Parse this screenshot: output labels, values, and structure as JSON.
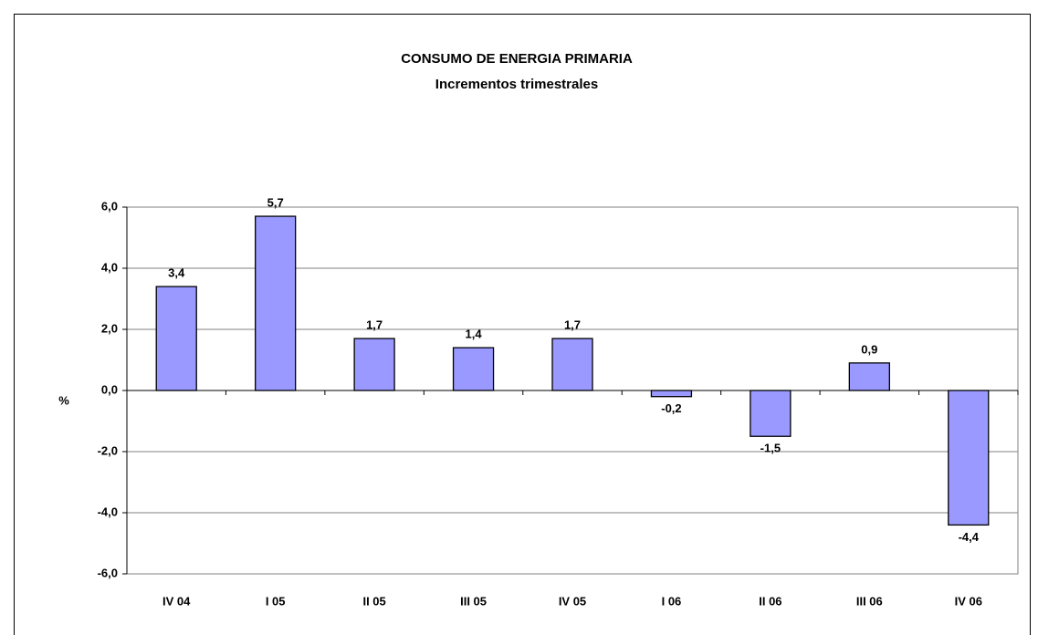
{
  "chart_data": {
    "type": "bar",
    "title": "CONSUMO DE ENERGIA PRIMARIA",
    "subtitle": "Incrementos trimestrales",
    "y_label": "%",
    "categories": [
      "IV 04",
      "I 05",
      "II 05",
      "III 05",
      "IV 05",
      "I 06",
      "II 06",
      "III 06",
      "IV 06"
    ],
    "values": [
      3.4,
      5.7,
      1.7,
      1.4,
      1.7,
      -0.2,
      -1.5,
      0.9,
      -4.4
    ],
    "value_labels": [
      "3,4",
      "5,7",
      "1,7",
      "1,4",
      "1,7",
      "-0,2",
      "-1,5",
      "0,9",
      "-4,4"
    ],
    "color": "#9999ff",
    "ylim": [
      -6,
      6
    ],
    "yticks": [
      {
        "value": -6,
        "label": "-6,0"
      },
      {
        "value": -4,
        "label": "-4,0"
      },
      {
        "value": -2,
        "label": "-2,0"
      },
      {
        "value": 0,
        "label": "0,0"
      },
      {
        "value": 2,
        "label": "2,0"
      },
      {
        "value": 4,
        "label": "4,0"
      },
      {
        "value": 6,
        "label": "6,0"
      }
    ],
    "grid": true
  }
}
